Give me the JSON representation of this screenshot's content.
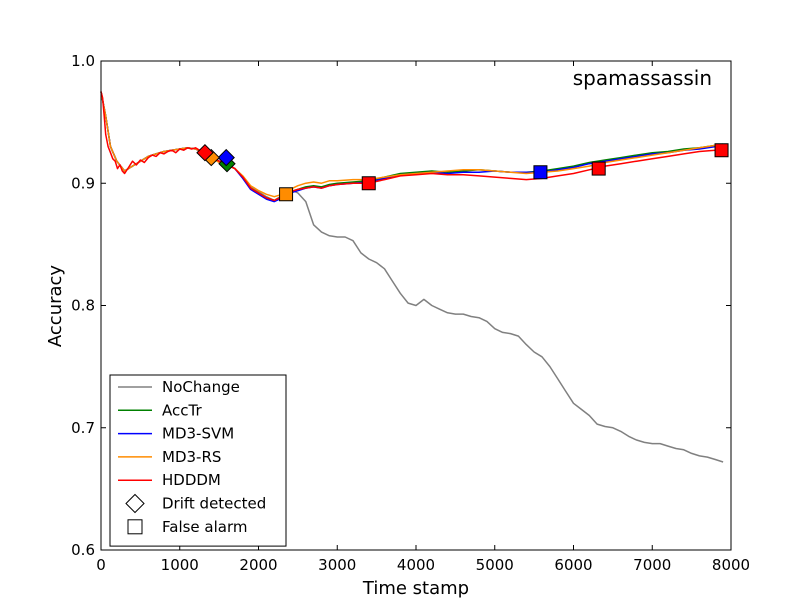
{
  "chart_data": {
    "type": "line",
    "title": "spamassassin",
    "xlabel": "Time stamp",
    "ylabel": "Accuracy",
    "xlim": [
      0,
      8000
    ],
    "ylim": [
      0.6,
      1.0
    ],
    "xticks": [
      0,
      1000,
      2000,
      3000,
      4000,
      5000,
      6000,
      7000,
      8000
    ],
    "xtick_labels": [
      "0",
      "1000",
      "2000",
      "3000",
      "4000",
      "5000",
      "6000",
      "7000",
      "8000"
    ],
    "yticks": [
      0.6,
      0.7,
      0.8,
      0.9,
      1.0
    ],
    "ytick_labels": [
      "0.6",
      "0.7",
      "0.8",
      "0.9",
      "1.0"
    ],
    "legend_position": "bottom-left",
    "series": [
      {
        "name": "NoChange",
        "color": "#808080",
        "x": [
          0,
          60,
          120,
          200,
          300,
          400,
          500,
          600,
          700,
          800,
          900,
          1000,
          1100,
          1200,
          1300,
          1400,
          1500,
          1600,
          1700,
          1800,
          1900,
          2000,
          2100,
          2200,
          2300,
          2400,
          2500,
          2600,
          2700,
          2800,
          2900,
          3000,
          3100,
          3200,
          3300,
          3400,
          3500,
          3600,
          3700,
          3800,
          3900,
          4000,
          4100,
          4200,
          4300,
          4400,
          4500,
          4600,
          4700,
          4800,
          4900,
          5000,
          5100,
          5200,
          5300,
          5400,
          5500,
          5600,
          5700,
          5800,
          5900,
          6000,
          6100,
          6200,
          6300,
          6400,
          6500,
          6600,
          6700,
          6800,
          6900,
          7000,
          7100,
          7200,
          7300,
          7400,
          7500,
          7600,
          7700,
          7800,
          7900
        ],
        "values": [
          0.975,
          0.955,
          0.93,
          0.918,
          0.91,
          0.914,
          0.918,
          0.922,
          0.924,
          0.926,
          0.927,
          0.928,
          0.929,
          0.928,
          0.925,
          0.922,
          0.918,
          0.915,
          0.912,
          0.905,
          0.897,
          0.893,
          0.889,
          0.886,
          0.89,
          0.895,
          0.892,
          0.885,
          0.866,
          0.86,
          0.857,
          0.856,
          0.856,
          0.853,
          0.843,
          0.838,
          0.835,
          0.83,
          0.82,
          0.81,
          0.802,
          0.8,
          0.805,
          0.8,
          0.797,
          0.794,
          0.793,
          0.793,
          0.791,
          0.79,
          0.787,
          0.781,
          0.778,
          0.777,
          0.775,
          0.768,
          0.762,
          0.758,
          0.75,
          0.74,
          0.73,
          0.72,
          0.715,
          0.71,
          0.703,
          0.701,
          0.7,
          0.697,
          0.693,
          0.69,
          0.688,
          0.687,
          0.687,
          0.685,
          0.683,
          0.682,
          0.679,
          0.677,
          0.676,
          0.674,
          0.672
        ]
      },
      {
        "name": "AccTr",
        "color": "#008000",
        "x": [
          0,
          60,
          120,
          200,
          300,
          400,
          500,
          600,
          700,
          800,
          900,
          1000,
          1100,
          1200,
          1300,
          1400,
          1500,
          1600,
          1700,
          1800,
          1900,
          2000,
          2100,
          2200,
          2300,
          2400,
          2500,
          2600,
          2700,
          2800,
          2900,
          3000,
          3200,
          3400,
          3600,
          3800,
          4000,
          4200,
          4400,
          4600,
          4800,
          5000,
          5200,
          5400,
          5600,
          5800,
          6000,
          6200,
          6400,
          6600,
          6800,
          7000,
          7200,
          7400,
          7600,
          7800,
          7900
        ],
        "values": [
          0.975,
          0.955,
          0.93,
          0.918,
          0.91,
          0.914,
          0.918,
          0.922,
          0.924,
          0.926,
          0.927,
          0.928,
          0.929,
          0.928,
          0.925,
          0.922,
          0.918,
          0.915,
          0.912,
          0.905,
          0.896,
          0.892,
          0.888,
          0.886,
          0.889,
          0.893,
          0.895,
          0.897,
          0.898,
          0.897,
          0.899,
          0.9,
          0.901,
          0.902,
          0.905,
          0.908,
          0.909,
          0.91,
          0.909,
          0.91,
          0.911,
          0.91,
          0.909,
          0.909,
          0.91,
          0.912,
          0.914,
          0.917,
          0.919,
          0.921,
          0.923,
          0.925,
          0.926,
          0.928,
          0.929,
          0.931,
          0.932
        ]
      },
      {
        "name": "MD3-SVM",
        "color": "#0000ff",
        "x": [
          0,
          60,
          120,
          200,
          300,
          400,
          500,
          600,
          700,
          800,
          900,
          1000,
          1100,
          1200,
          1300,
          1400,
          1500,
          1600,
          1700,
          1800,
          1900,
          2000,
          2100,
          2200,
          2300,
          2400,
          2500,
          2600,
          2700,
          2800,
          2900,
          3000,
          3200,
          3400,
          3600,
          3800,
          4000,
          4200,
          4400,
          4600,
          4800,
          5000,
          5200,
          5400,
          5600,
          5800,
          6000,
          6200,
          6400,
          6600,
          6800,
          7000,
          7200,
          7400,
          7600,
          7800,
          7900
        ],
        "values": [
          0.975,
          0.955,
          0.93,
          0.918,
          0.91,
          0.914,
          0.918,
          0.922,
          0.924,
          0.926,
          0.927,
          0.928,
          0.929,
          0.928,
          0.925,
          0.922,
          0.918,
          0.916,
          0.912,
          0.904,
          0.895,
          0.891,
          0.887,
          0.885,
          0.888,
          0.892,
          0.894,
          0.896,
          0.897,
          0.896,
          0.898,
          0.899,
          0.9,
          0.901,
          0.904,
          0.907,
          0.908,
          0.909,
          0.908,
          0.909,
          0.909,
          0.91,
          0.909,
          0.909,
          0.909,
          0.911,
          0.913,
          0.916,
          0.918,
          0.92,
          0.922,
          0.924,
          0.925,
          0.927,
          0.928,
          0.93,
          0.931
        ]
      },
      {
        "name": "MD3-RS",
        "color": "#ff8c00",
        "x": [
          0,
          60,
          120,
          200,
          300,
          400,
          500,
          600,
          700,
          800,
          900,
          1000,
          1100,
          1200,
          1300,
          1400,
          1500,
          1600,
          1700,
          1800,
          1900,
          2000,
          2100,
          2200,
          2300,
          2400,
          2500,
          2600,
          2700,
          2800,
          2900,
          3000,
          3200,
          3400,
          3600,
          3800,
          4000,
          4200,
          4400,
          4600,
          4800,
          5000,
          5200,
          5400,
          5600,
          5800,
          6000,
          6200,
          6400,
          6600,
          6800,
          7000,
          7200,
          7400,
          7600,
          7800,
          7900
        ],
        "values": [
          0.975,
          0.955,
          0.93,
          0.918,
          0.91,
          0.914,
          0.918,
          0.922,
          0.924,
          0.926,
          0.927,
          0.928,
          0.929,
          0.928,
          0.925,
          0.921,
          0.917,
          0.915,
          0.912,
          0.906,
          0.898,
          0.894,
          0.891,
          0.889,
          0.891,
          0.895,
          0.898,
          0.9,
          0.901,
          0.9,
          0.902,
          0.902,
          0.903,
          0.903,
          0.905,
          0.907,
          0.908,
          0.909,
          0.91,
          0.911,
          0.911,
          0.91,
          0.909,
          0.908,
          0.909,
          0.91,
          0.912,
          0.914,
          0.917,
          0.919,
          0.921,
          0.923,
          0.925,
          0.927,
          0.929,
          0.931,
          0.932
        ]
      },
      {
        "name": "HDDDM",
        "color": "#ff0000",
        "x": [
          0,
          20,
          40,
          60,
          90,
          120,
          150,
          180,
          210,
          240,
          270,
          300,
          350,
          400,
          450,
          500,
          550,
          600,
          650,
          700,
          750,
          800,
          850,
          900,
          950,
          1000,
          1050,
          1100,
          1150,
          1200,
          1250,
          1300,
          1350,
          1400,
          1450,
          1500,
          1550,
          1600,
          1700,
          1800,
          1900,
          2000,
          2100,
          2200,
          2300,
          2400,
          2500,
          2600,
          2700,
          2800,
          2900,
          3000,
          3200,
          3400,
          3600,
          3800,
          4000,
          4200,
          4400,
          4600,
          4800,
          5000,
          5200,
          5400,
          5600,
          5800,
          6000,
          6200,
          6400,
          6600,
          6800,
          7000,
          7200,
          7400,
          7600,
          7800,
          7900
        ],
        "values": [
          0.975,
          0.97,
          0.955,
          0.94,
          0.93,
          0.925,
          0.92,
          0.918,
          0.912,
          0.915,
          0.91,
          0.908,
          0.913,
          0.918,
          0.915,
          0.919,
          0.917,
          0.921,
          0.923,
          0.922,
          0.925,
          0.924,
          0.926,
          0.927,
          0.925,
          0.928,
          0.927,
          0.929,
          0.928,
          0.929,
          0.927,
          0.925,
          0.923,
          0.922,
          0.92,
          0.918,
          0.917,
          0.915,
          0.912,
          0.905,
          0.896,
          0.892,
          0.888,
          0.886,
          0.889,
          0.893,
          0.895,
          0.896,
          0.897,
          0.896,
          0.898,
          0.899,
          0.9,
          0.9,
          0.903,
          0.906,
          0.907,
          0.908,
          0.907,
          0.907,
          0.906,
          0.905,
          0.904,
          0.903,
          0.904,
          0.906,
          0.908,
          0.911,
          0.914,
          0.916,
          0.918,
          0.92,
          0.922,
          0.924,
          0.926,
          0.927,
          0.928
        ]
      }
    ],
    "markers": [
      {
        "series": "AccTr",
        "type": "drift",
        "x": 1600,
        "y": 0.916
      },
      {
        "series": "MD3-SVM",
        "type": "drift",
        "x": 1590,
        "y": 0.921
      },
      {
        "series": "MD3-RS",
        "type": "drift",
        "x": 1400,
        "y": 0.921
      },
      {
        "series": "HDDDM",
        "type": "drift",
        "x": 1320,
        "y": 0.925
      },
      {
        "series": "MD3-RS",
        "type": "false-alarm",
        "x": 2350,
        "y": 0.891
      },
      {
        "series": "HDDDM",
        "type": "false-alarm",
        "x": 3400,
        "y": 0.9
      },
      {
        "series": "MD3-SVM",
        "type": "false-alarm",
        "x": 5580,
        "y": 0.909
      },
      {
        "series": "HDDDM",
        "type": "false-alarm",
        "x": 6320,
        "y": 0.912
      },
      {
        "series": "HDDDM",
        "type": "false-alarm",
        "x": 7880,
        "y": 0.927
      }
    ],
    "legend": {
      "lines": [
        "NoChange",
        "AccTr",
        "MD3-SVM",
        "MD3-RS",
        "HDDDM"
      ],
      "symbols": [
        {
          "label": "Drift detected",
          "shape": "diamond"
        },
        {
          "label": "False alarm",
          "shape": "square"
        }
      ]
    }
  }
}
